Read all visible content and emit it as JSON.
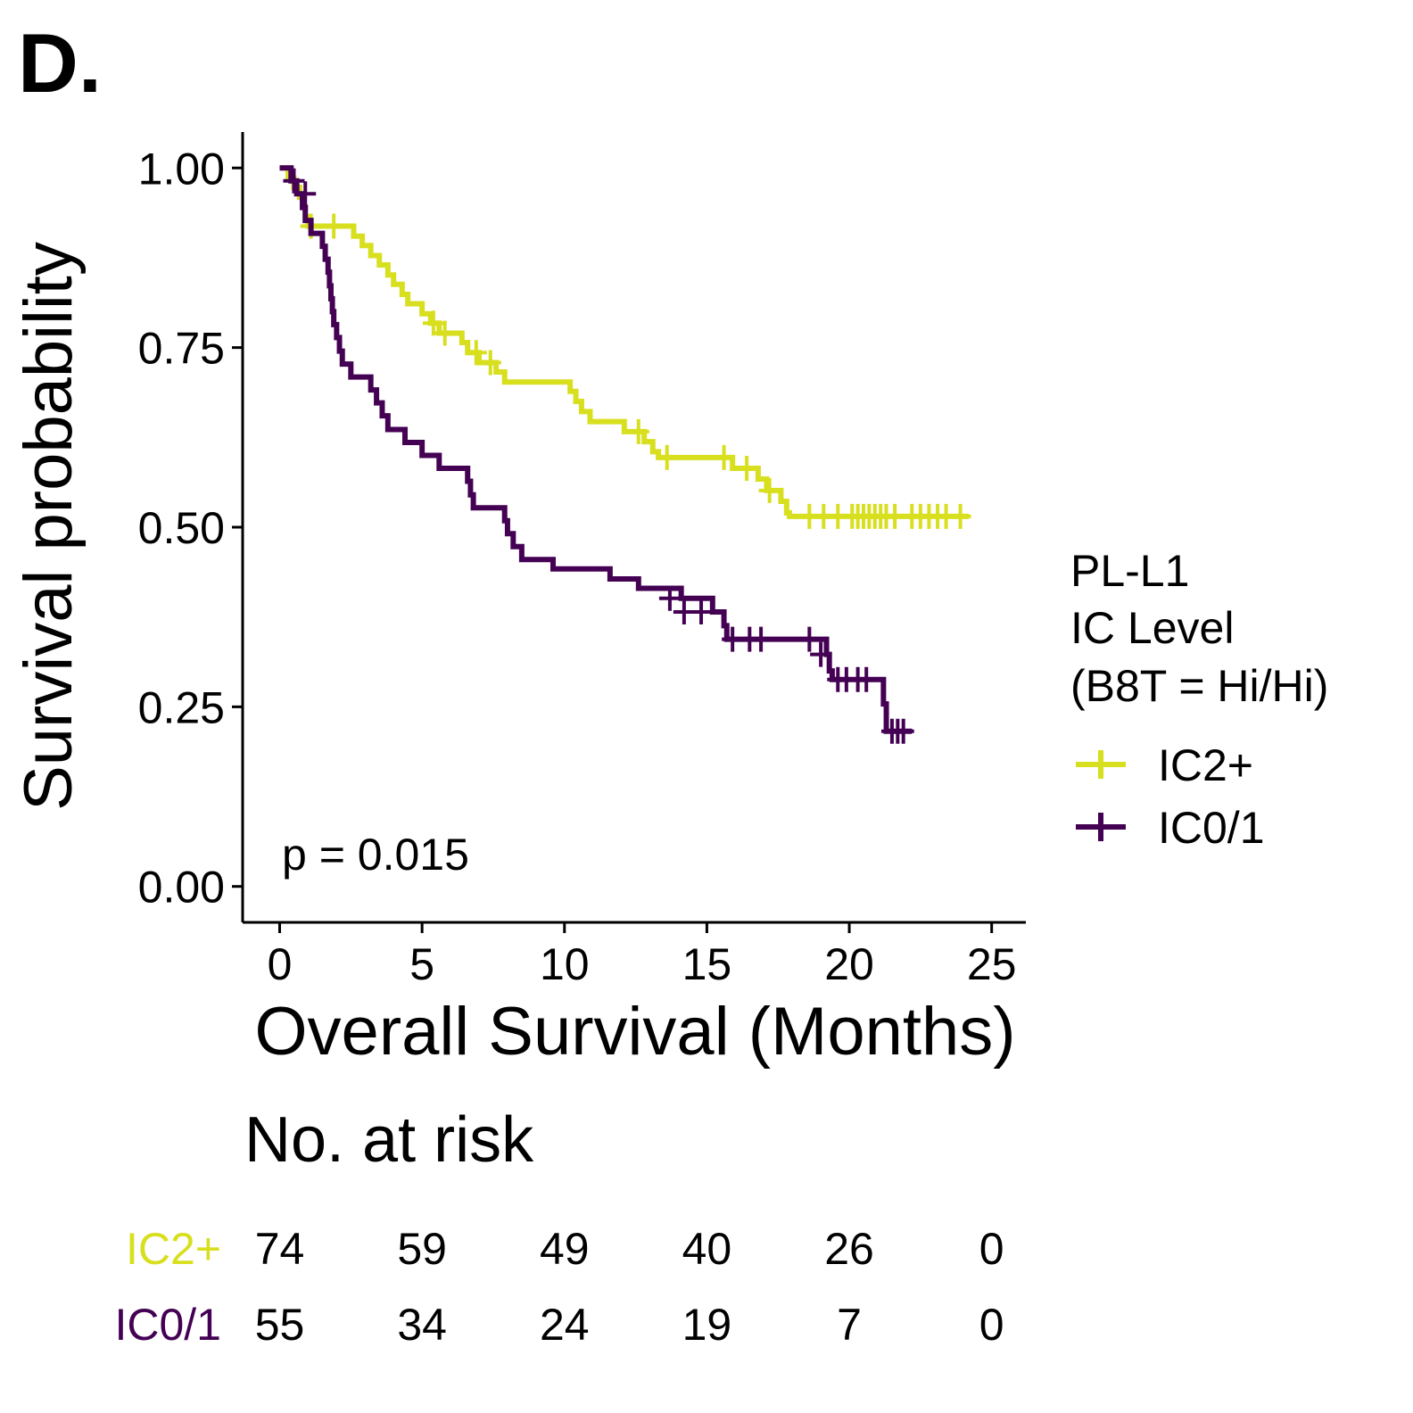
{
  "panel_label": "D.",
  "colors": {
    "IC2+": "#d8df1e",
    "IC0/1": "#440154",
    "axis": "#000000"
  },
  "chart_data": {
    "type": "line",
    "subtype": "kaplan-meier",
    "xlabel": "Overall Survival (Months)",
    "ylabel": "Survival probability",
    "xlim": [
      -1.3,
      26.2
    ],
    "ylim": [
      -0.05,
      1.05
    ],
    "x_ticks": [
      0,
      5,
      10,
      15,
      20,
      25
    ],
    "x_tick_labels": [
      "0",
      "5",
      "10",
      "15",
      "20",
      "25"
    ],
    "y_ticks": [
      0,
      0.25,
      0.5,
      0.75,
      1.0
    ],
    "y_tick_labels": [
      "0.00",
      "0.25",
      "0.50",
      "0.75",
      "1.00"
    ],
    "grid": false,
    "annotation": "p = 0.015",
    "legend": {
      "title": [
        "PL-L1",
        "IC Level",
        "(B8T = Hi/Hi)"
      ],
      "placement": "right",
      "entries": [
        "IC2+",
        "IC0/1"
      ]
    },
    "series": [
      {
        "name": "IC2+",
        "color": "#d8df1e",
        "steps": [
          [
            0,
            1.0
          ],
          [
            0.3,
            0.986
          ],
          [
            0.5,
            0.973
          ],
          [
            0.7,
            0.959
          ],
          [
            0.8,
            0.946
          ],
          [
            0.9,
            0.932
          ],
          [
            1.0,
            0.919
          ],
          [
            2.6,
            0.905
          ],
          [
            2.9,
            0.892
          ],
          [
            3.2,
            0.878
          ],
          [
            3.5,
            0.865
          ],
          [
            3.8,
            0.851
          ],
          [
            4.0,
            0.838
          ],
          [
            4.3,
            0.824
          ],
          [
            4.5,
            0.811
          ],
          [
            5.0,
            0.797
          ],
          [
            5.3,
            0.784
          ],
          [
            5.6,
            0.77
          ],
          [
            6.4,
            0.757
          ],
          [
            6.6,
            0.743
          ],
          [
            7.0,
            0.729
          ],
          [
            7.6,
            0.716
          ],
          [
            7.9,
            0.702
          ],
          [
            10.2,
            0.689
          ],
          [
            10.4,
            0.675
          ],
          [
            10.6,
            0.661
          ],
          [
            10.9,
            0.647
          ],
          [
            12.1,
            0.633
          ],
          [
            12.8,
            0.619
          ],
          [
            13.1,
            0.605
          ],
          [
            13.3,
            0.597
          ],
          [
            15.9,
            0.582
          ],
          [
            16.8,
            0.567
          ],
          [
            17.1,
            0.551
          ],
          [
            17.6,
            0.536
          ],
          [
            17.8,
            0.52
          ],
          [
            17.9,
            0.515
          ]
        ],
        "end_x": 24.2,
        "censors": [
          [
            1.1,
            0.919
          ],
          [
            1.9,
            0.919
          ],
          [
            5.4,
            0.784
          ],
          [
            5.8,
            0.77
          ],
          [
            6.9,
            0.743
          ],
          [
            7.4,
            0.729
          ],
          [
            12.6,
            0.633
          ],
          [
            13.6,
            0.597
          ],
          [
            15.6,
            0.597
          ],
          [
            16.4,
            0.582
          ],
          [
            17.2,
            0.551
          ],
          [
            18.6,
            0.515
          ],
          [
            19.1,
            0.515
          ],
          [
            19.6,
            0.515
          ],
          [
            20.1,
            0.515
          ],
          [
            20.3,
            0.515
          ],
          [
            20.5,
            0.515
          ],
          [
            20.7,
            0.515
          ],
          [
            20.9,
            0.515
          ],
          [
            21.1,
            0.515
          ],
          [
            21.3,
            0.515
          ],
          [
            21.6,
            0.515
          ],
          [
            22.2,
            0.515
          ],
          [
            22.5,
            0.515
          ],
          [
            22.8,
            0.515
          ],
          [
            23.1,
            0.515
          ],
          [
            23.4,
            0.515
          ],
          [
            23.9,
            0.515
          ]
        ]
      },
      {
        "name": "IC0/1",
        "color": "#440154",
        "steps": [
          [
            0,
            1.0
          ],
          [
            0.4,
            0.982
          ],
          [
            0.6,
            0.964
          ],
          [
            0.8,
            0.945
          ],
          [
            0.9,
            0.927
          ],
          [
            1.1,
            0.909
          ],
          [
            1.5,
            0.891
          ],
          [
            1.6,
            0.873
          ],
          [
            1.7,
            0.855
          ],
          [
            1.75,
            0.836
          ],
          [
            1.8,
            0.818
          ],
          [
            1.85,
            0.8
          ],
          [
            1.9,
            0.782
          ],
          [
            2.0,
            0.764
          ],
          [
            2.1,
            0.745
          ],
          [
            2.2,
            0.727
          ],
          [
            2.5,
            0.709
          ],
          [
            3.2,
            0.691
          ],
          [
            3.4,
            0.673
          ],
          [
            3.6,
            0.655
          ],
          [
            3.8,
            0.636
          ],
          [
            4.4,
            0.618
          ],
          [
            5.0,
            0.6
          ],
          [
            5.6,
            0.582
          ],
          [
            6.6,
            0.564
          ],
          [
            6.7,
            0.545
          ],
          [
            6.8,
            0.527
          ],
          [
            7.9,
            0.509
          ],
          [
            8.0,
            0.491
          ],
          [
            8.2,
            0.473
          ],
          [
            8.5,
            0.455
          ],
          [
            9.6,
            0.442
          ],
          [
            11.6,
            0.428
          ],
          [
            12.6,
            0.415
          ],
          [
            14.1,
            0.401
          ],
          [
            15.2,
            0.382
          ],
          [
            15.6,
            0.363
          ],
          [
            15.7,
            0.344
          ],
          [
            19.2,
            0.323
          ],
          [
            19.3,
            0.3
          ],
          [
            19.4,
            0.288
          ],
          [
            21.2,
            0.254
          ],
          [
            21.3,
            0.216
          ]
        ],
        "end_x": 22.2,
        "censors": [
          [
            0.5,
            0.982
          ],
          [
            0.9,
            0.964
          ],
          [
            13.7,
            0.401
          ],
          [
            14.2,
            0.382
          ],
          [
            14.8,
            0.382
          ],
          [
            15.9,
            0.344
          ],
          [
            16.5,
            0.344
          ],
          [
            16.9,
            0.344
          ],
          [
            18.6,
            0.344
          ],
          [
            19.0,
            0.323
          ],
          [
            19.6,
            0.288
          ],
          [
            19.9,
            0.288
          ],
          [
            20.3,
            0.288
          ],
          [
            20.6,
            0.288
          ],
          [
            21.5,
            0.216
          ],
          [
            21.7,
            0.216
          ],
          [
            21.9,
            0.216
          ]
        ]
      }
    ],
    "risk_table": {
      "title": "No. at risk",
      "times": [
        0,
        5,
        10,
        15,
        20,
        25
      ],
      "rows": [
        {
          "label": "IC2+",
          "counts": [
            74,
            59,
            49,
            40,
            26,
            0
          ]
        },
        {
          "label": "IC0/1",
          "counts": [
            55,
            34,
            24,
            19,
            7,
            0
          ]
        }
      ]
    }
  }
}
